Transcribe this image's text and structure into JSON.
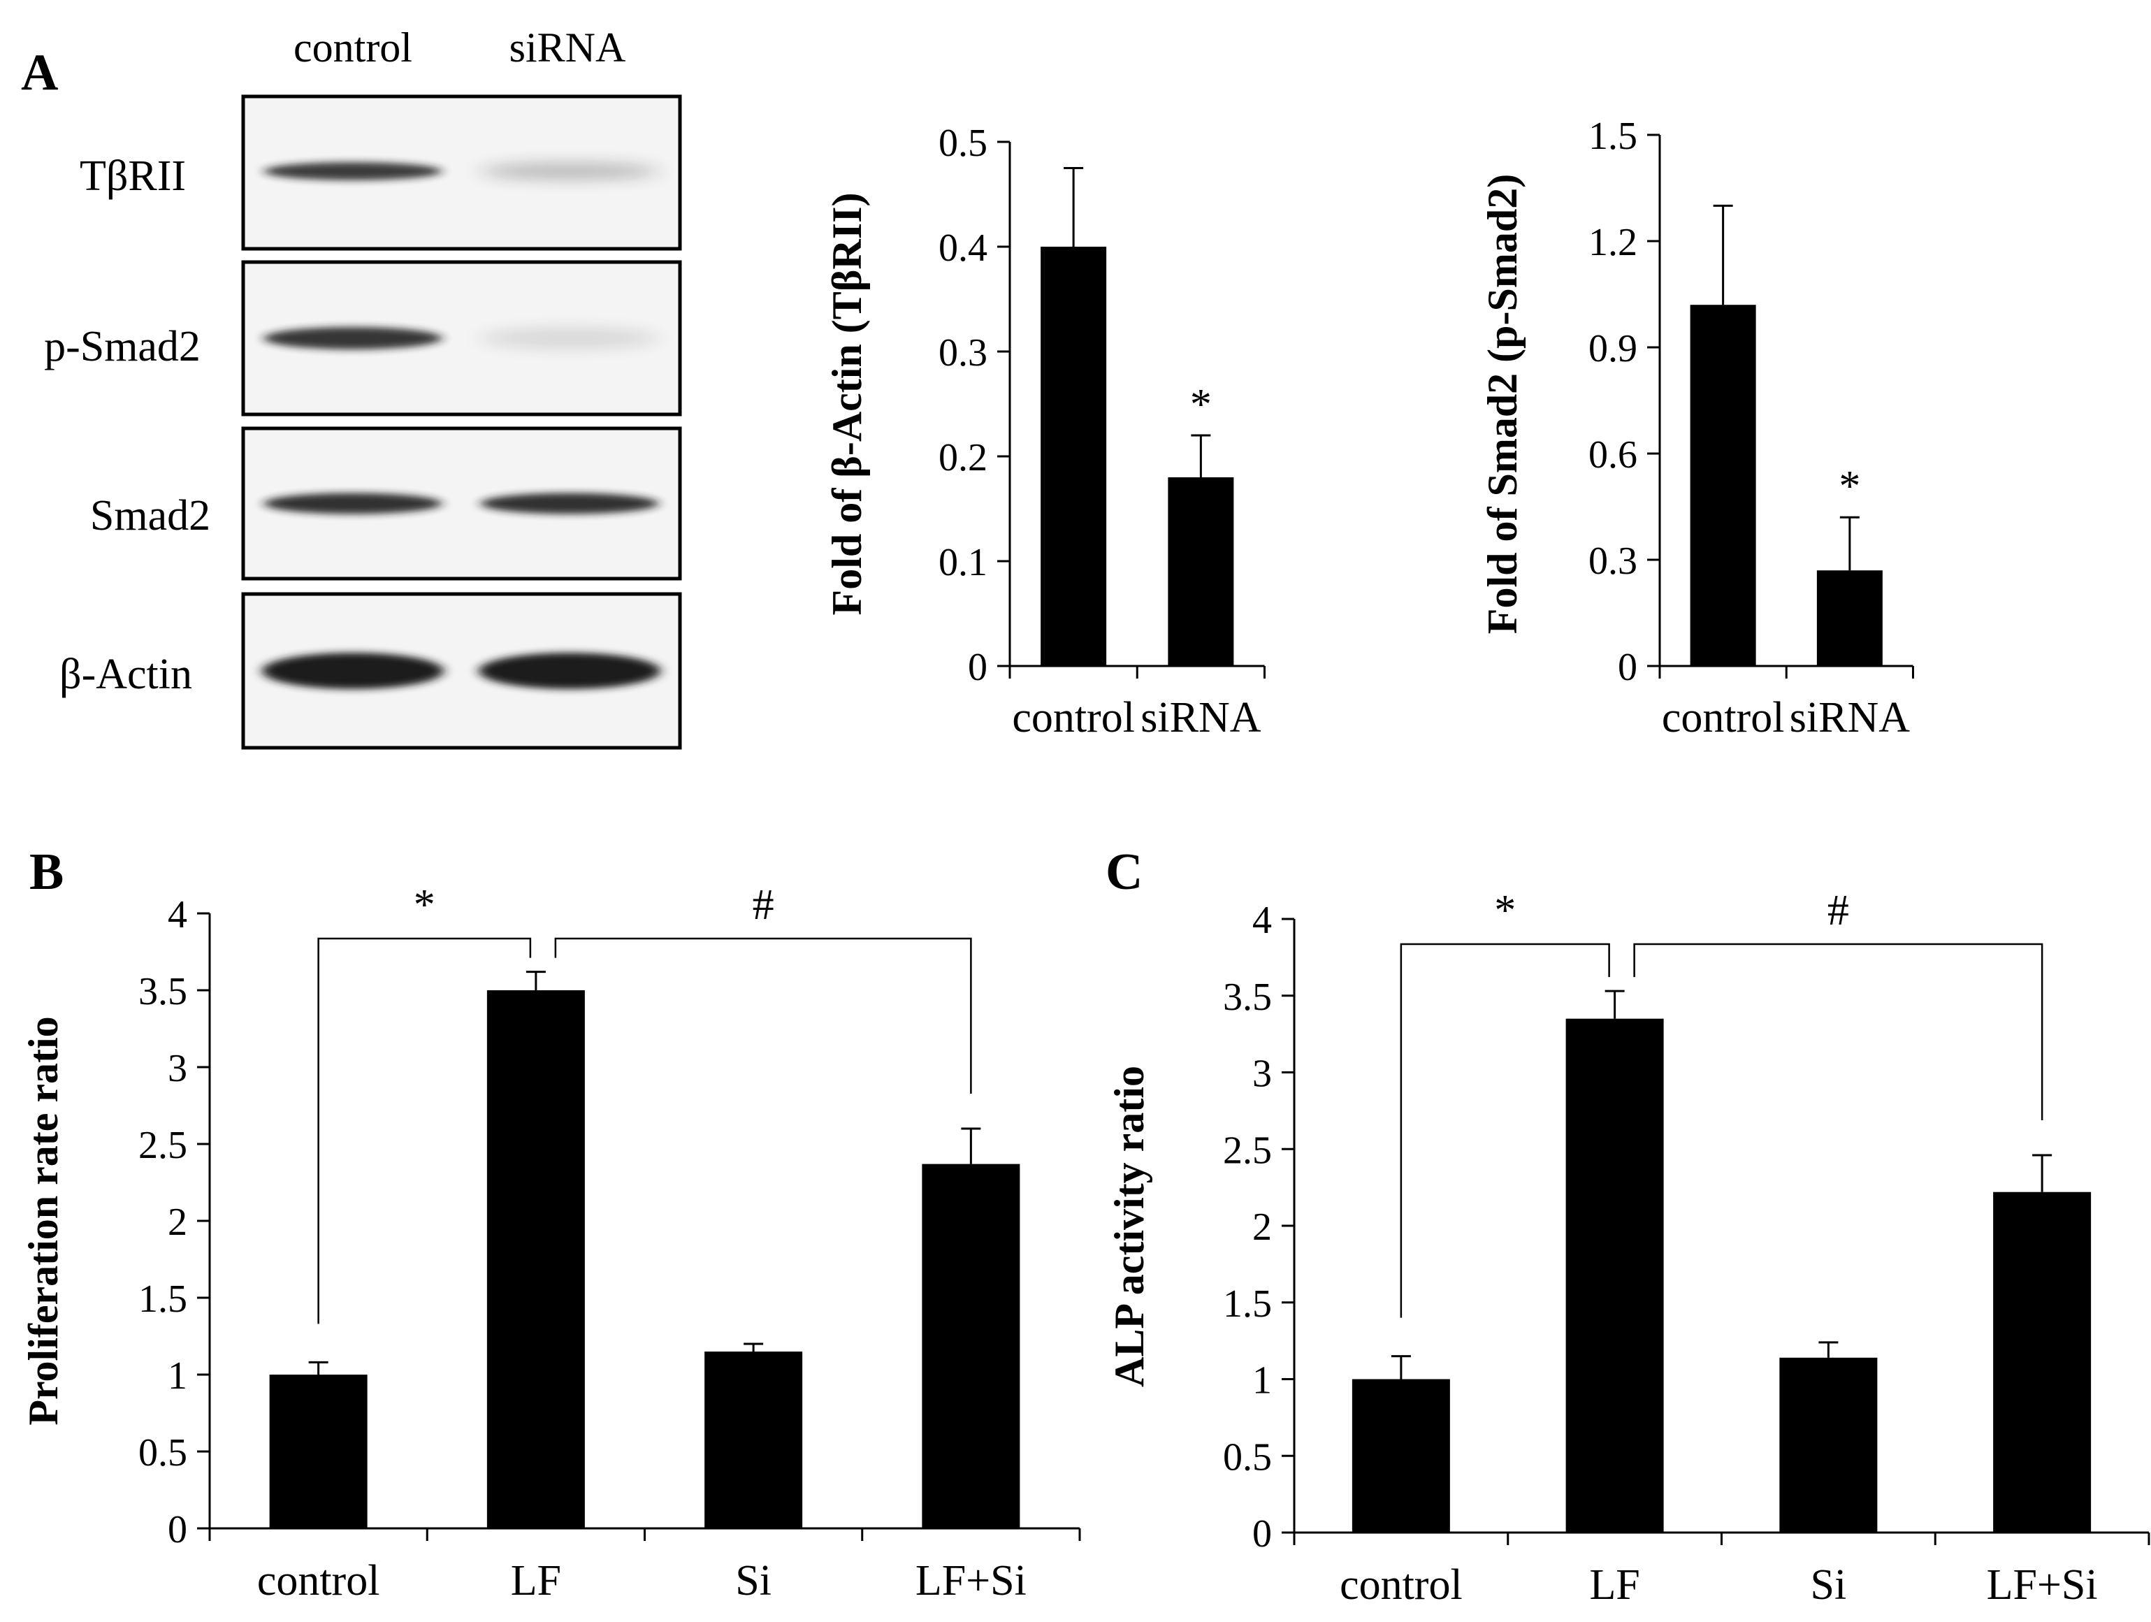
{
  "panel_letters": [
    "A",
    "B",
    "C"
  ],
  "blot": {
    "lanes": [
      "control",
      "siRNA"
    ],
    "rows": [
      {
        "label": "TβRII",
        "band_intensity": [
          0.85,
          0.25
        ]
      },
      {
        "label": "p-Smad2",
        "band_intensity": [
          0.88,
          0.12
        ]
      },
      {
        "label": "Smad2",
        "band_intensity": [
          0.9,
          0.9
        ]
      },
      {
        "label": "β-Actin",
        "band_intensity": [
          1.0,
          1.0
        ]
      }
    ],
    "colors": {
      "band": "#1a1a1a",
      "background": "#f4f4f4"
    }
  },
  "chart_data": [
    {
      "panel": "A",
      "type": "bar",
      "categories": [
        "control",
        "siRNA"
      ],
      "values": [
        0.4,
        0.18
      ],
      "errors": [
        0.075,
        0.04
      ],
      "ylabel": "Fold of  β-Actin (TβRII)",
      "ylim": [
        0,
        0.5
      ],
      "yticks": [
        "0",
        "0.1",
        "0.2",
        "0.3",
        "0.4",
        "0.5"
      ],
      "significance": [
        {
          "category": "siRNA",
          "mark": "*"
        }
      ],
      "brackets": [],
      "grid": false,
      "color": "#000000"
    },
    {
      "panel": "A",
      "type": "bar",
      "categories": [
        "control",
        "siRNA"
      ],
      "values": [
        1.02,
        0.27
      ],
      "errors": [
        0.28,
        0.15
      ],
      "ylabel": "Fold of Smad2 (p-Smad2)",
      "ylim": [
        0,
        1.5
      ],
      "yticks": [
        "0",
        "0.3",
        "0.6",
        "0.9",
        "1.2",
        "1.5"
      ],
      "significance": [
        {
          "category": "siRNA",
          "mark": "*"
        }
      ],
      "brackets": [],
      "grid": false,
      "color": "#000000"
    },
    {
      "panel": "B",
      "type": "bar",
      "categories": [
        "control",
        "LF",
        "Si",
        "LF+Si"
      ],
      "values": [
        1.0,
        3.5,
        1.15,
        2.37
      ],
      "errors": [
        0.08,
        0.12,
        0.05,
        0.23
      ],
      "ylabel": "Proliferation rate ratio",
      "ylim": [
        0,
        4
      ],
      "yticks": [
        "0",
        "0.5",
        "1",
        "1.5",
        "2",
        "2.5",
        "3",
        "3.5",
        "4"
      ],
      "significance": [],
      "brackets": [
        {
          "from": 0,
          "to": 1,
          "mark": "*"
        },
        {
          "from": 1,
          "to": 3,
          "mark": "#"
        }
      ],
      "grid": false,
      "color": "#000000"
    },
    {
      "panel": "C",
      "type": "bar",
      "categories": [
        "control",
        "LF",
        "Si",
        "LF+Si"
      ],
      "values": [
        1.0,
        3.35,
        1.14,
        2.22
      ],
      "errors": [
        0.15,
        0.18,
        0.1,
        0.24
      ],
      "ylabel": "ALP activity ratio",
      "ylim": [
        0,
        4
      ],
      "yticks": [
        "0",
        "0.5",
        "1",
        "1.5",
        "2",
        "2.5",
        "3",
        "3.5",
        "4"
      ],
      "significance": [],
      "brackets": [
        {
          "from": 0,
          "to": 1,
          "mark": "*"
        },
        {
          "from": 1,
          "to": 3,
          "mark": "#"
        }
      ],
      "grid": false,
      "color": "#000000"
    }
  ]
}
